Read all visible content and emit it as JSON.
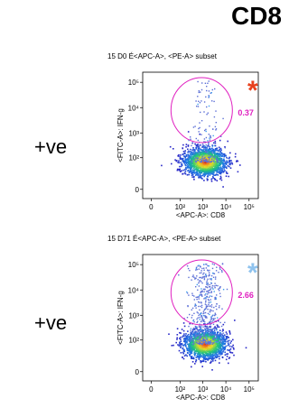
{
  "heading": "CD8",
  "chart_data": [
    {
      "type": "scatter",
      "subtitle": "15 D0  É<APC-A>, <PE-A> subset",
      "row_label": "+ve",
      "xlabel": "<APC-A>: CD8",
      "ylabel": "<FITC-A>: IFN-g",
      "x_tick_labels": [
        "0",
        "10²",
        "10³",
        "10⁴",
        "10⁵"
      ],
      "y_tick_labels": [
        "0",
        "10²",
        "10³",
        "10⁴",
        "10⁵"
      ],
      "x_tick_values": [
        0,
        100,
        1000,
        10000,
        100000
      ],
      "y_tick_values": [
        0,
        100,
        1000,
        10000,
        100000
      ],
      "gate_percentage": "0.37",
      "gate_percentage_color": "#e020c0",
      "gate_color": "#e020c0",
      "marker": "*",
      "marker_color": "#e8401c",
      "population_center": {
        "x": 1200,
        "y": 70
      },
      "population_spread_x_decades": 0.4,
      "population_y_range": [
        0,
        400
      ],
      "gate_center": {
        "x": 900,
        "y": 8000
      },
      "gate_event_density": "sparse"
    },
    {
      "type": "scatter",
      "subtitle": "15 D71  É<APC-A>, <PE-A> subset",
      "row_label": "+ve",
      "xlabel": "<APC-A>: CD8",
      "ylabel": "<FITC-A>: IFN-g",
      "x_tick_labels": [
        "0",
        "10²",
        "10³",
        "10⁴",
        "10⁵"
      ],
      "y_tick_labels": [
        "0",
        "10²",
        "10³",
        "10⁴",
        "10⁵"
      ],
      "x_tick_values": [
        0,
        100,
        1000,
        10000,
        100000
      ],
      "y_tick_values": [
        0,
        100,
        1000,
        10000,
        100000
      ],
      "gate_percentage": "2.66",
      "gate_percentage_color": "#e020c0",
      "gate_color": "#e020c0",
      "marker": "*",
      "marker_color": "#8fc3ee",
      "population_center": {
        "x": 1200,
        "y": 70
      },
      "population_spread_x_decades": 0.4,
      "population_y_range": [
        0,
        400
      ],
      "gate_center": {
        "x": 900,
        "y": 8000
      },
      "gate_event_density": "dense"
    }
  ]
}
